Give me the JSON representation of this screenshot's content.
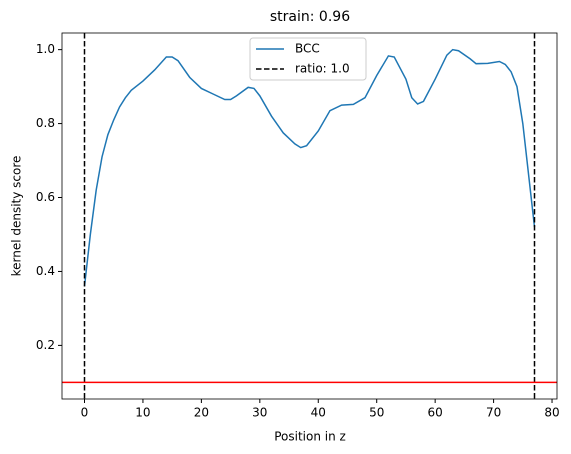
{
  "chart_data": {
    "type": "line",
    "title": "strain: 0.96",
    "xlabel": "Position in z",
    "ylabel": "kernel density score",
    "series": [
      {
        "name": "BCC",
        "color": "#1f77b4",
        "x": [
          0,
          1,
          2,
          3,
          4,
          5,
          6,
          7,
          8,
          10,
          12,
          14,
          15,
          16,
          18,
          20,
          22,
          24,
          25,
          26,
          28,
          29,
          30,
          32,
          34,
          36,
          37,
          38,
          40,
          42,
          44,
          46,
          48,
          50,
          52,
          53,
          55,
          56,
          57,
          58,
          60,
          62,
          63,
          64,
          66,
          67,
          69,
          71,
          72,
          73,
          74,
          75,
          76,
          77
        ],
        "values": [
          0.36,
          0.5,
          0.62,
          0.71,
          0.77,
          0.81,
          0.845,
          0.87,
          0.89,
          0.915,
          0.945,
          0.98,
          0.98,
          0.97,
          0.925,
          0.895,
          0.88,
          0.865,
          0.865,
          0.875,
          0.898,
          0.895,
          0.875,
          0.82,
          0.775,
          0.745,
          0.735,
          0.74,
          0.78,
          0.835,
          0.85,
          0.852,
          0.87,
          0.93,
          0.983,
          0.98,
          0.92,
          0.87,
          0.853,
          0.86,
          0.92,
          0.985,
          1.0,
          0.997,
          0.975,
          0.962,
          0.963,
          0.968,
          0.96,
          0.94,
          0.9,
          0.8,
          0.66,
          0.52
        ]
      }
    ],
    "vlines": {
      "name": "ratio: 1.0",
      "color": "#000000",
      "x": [
        0,
        77
      ]
    },
    "hline": {
      "color": "#ff0000",
      "y": 0.1
    },
    "xlim": [
      -3.85,
      80.85
    ],
    "ylim": [
      0.055,
      1.045
    ],
    "xticks": [
      0,
      10,
      20,
      30,
      40,
      50,
      60,
      70,
      80
    ],
    "yticks": [
      0.2,
      0.4,
      0.6,
      0.8,
      {
        "value": 1,
        "label": "1.0"
      }
    ],
    "legend": "upper center"
  }
}
